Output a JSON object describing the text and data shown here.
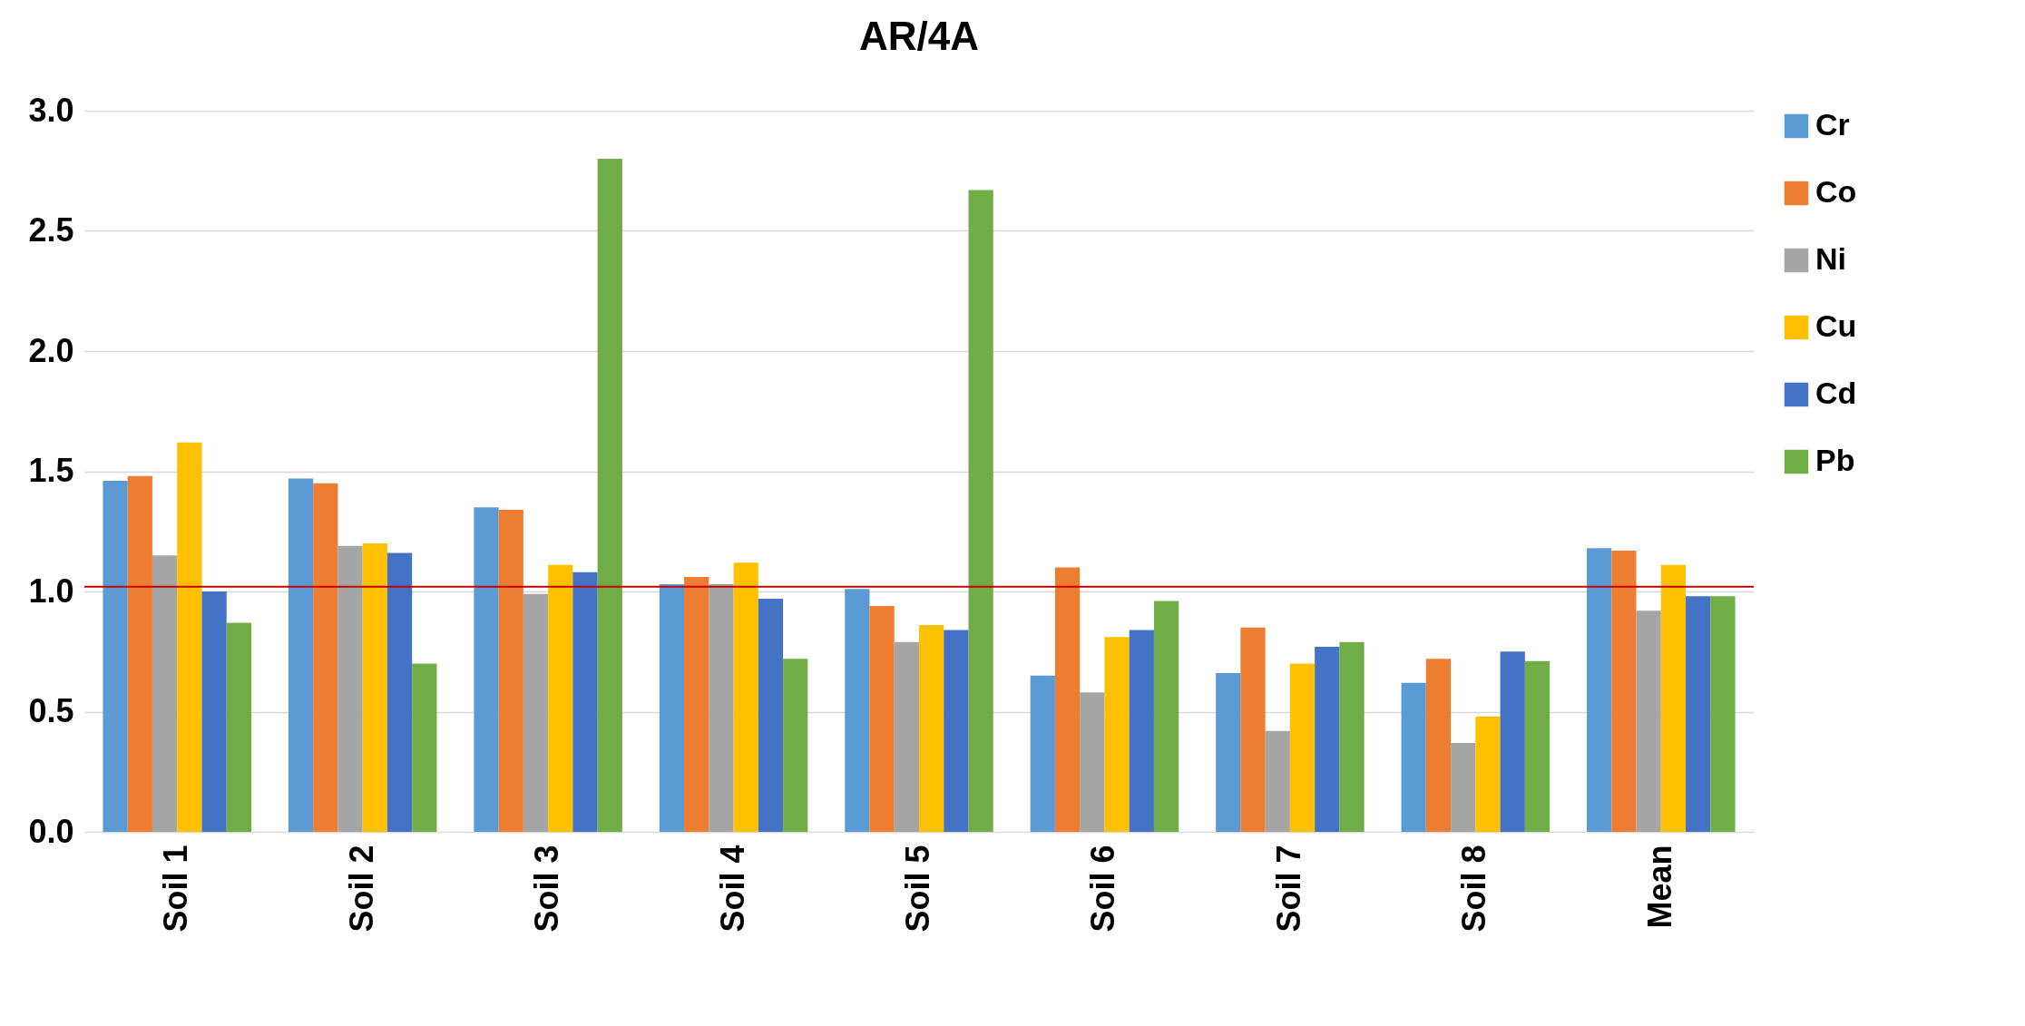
{
  "chart_data": {
    "type": "bar",
    "title": "AR/4A",
    "categories": [
      "Soil 1",
      "Soil 2",
      "Soil 3",
      "Soil 4",
      "Soil 5",
      "Soil 6",
      "Soil 7",
      "Soil 8",
      "Mean"
    ],
    "series": [
      {
        "name": "Cr",
        "color": "#5b9bd5",
        "values": [
          1.46,
          1.47,
          1.35,
          1.03,
          1.01,
          0.65,
          0.66,
          0.62,
          1.18
        ]
      },
      {
        "name": "Co",
        "color": "#ed7d31",
        "values": [
          1.48,
          1.45,
          1.34,
          1.06,
          0.94,
          1.1,
          0.85,
          0.72,
          1.17
        ]
      },
      {
        "name": "Ni",
        "color": "#a5a5a5",
        "values": [
          1.15,
          1.19,
          0.99,
          1.03,
          0.79,
          0.58,
          0.42,
          0.37,
          0.92
        ]
      },
      {
        "name": "Cu",
        "color": "#ffc000",
        "values": [
          1.62,
          1.2,
          1.11,
          1.12,
          0.86,
          0.81,
          0.7,
          0.48,
          1.11
        ]
      },
      {
        "name": "Cd",
        "color": "#4472c4",
        "values": [
          1.0,
          1.16,
          1.08,
          0.97,
          0.84,
          0.84,
          0.77,
          0.75,
          0.98
        ]
      },
      {
        "name": "Pb",
        "color": "#70ad47",
        "values": [
          0.87,
          0.7,
          2.8,
          0.72,
          2.67,
          0.96,
          0.79,
          0.71,
          0.98
        ]
      }
    ],
    "ylim": [
      0,
      3
    ],
    "yticks": [
      {
        "value": 0,
        "label": "0.0"
      },
      {
        "value": 0.5,
        "label": "0.5"
      },
      {
        "value": 1,
        "label": "1.0"
      },
      {
        "value": 1.5,
        "label": "1.5"
      },
      {
        "value": 2,
        "label": "2.0"
      },
      {
        "value": 2.5,
        "label": "2.5"
      },
      {
        "value": 3,
        "label": "3.0"
      }
    ],
    "ref_lines": [
      {
        "axis": "y",
        "value": 1.02,
        "label": null,
        "color": "#c00000"
      }
    ],
    "grid": "y",
    "legend": "right"
  }
}
